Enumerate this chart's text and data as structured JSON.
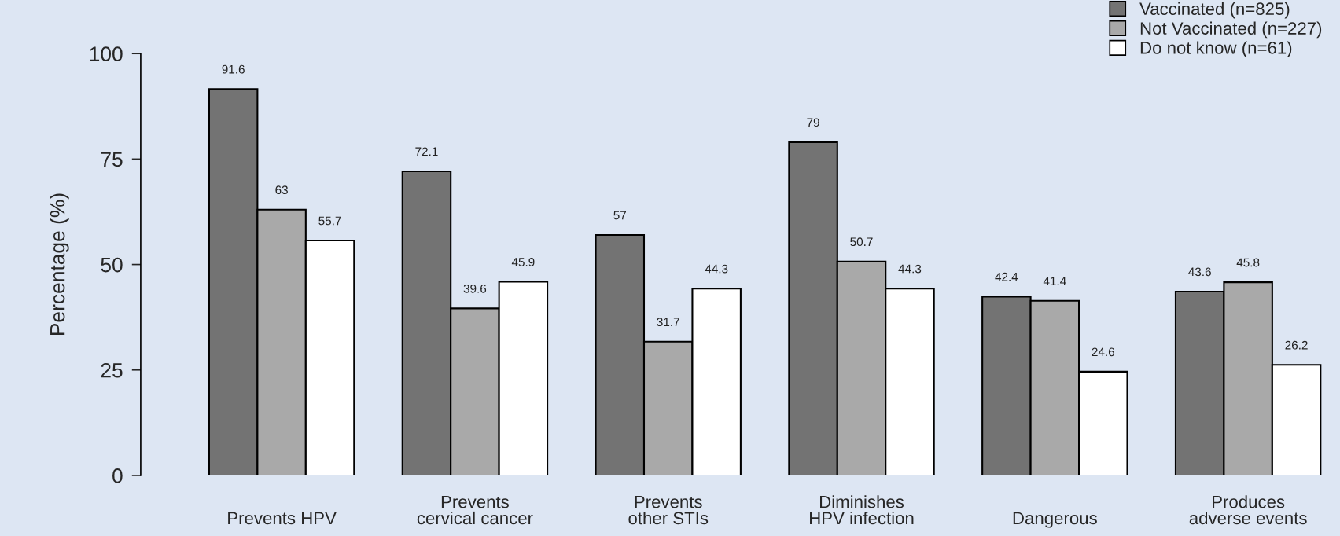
{
  "chart_data": {
    "type": "bar",
    "ylabel": "Percentage (%)",
    "categories": [
      "Prevents HPV",
      "Prevents\ncervical cancer",
      "Prevents\nother STIs",
      "Diminishes\nHPV infection",
      "Dangerous",
      "Produces\nadverse events"
    ],
    "series": [
      {
        "name": "Vaccinated (n=825)",
        "color": "#737373",
        "values": [
          91.6,
          72.1,
          57,
          79,
          42.4,
          43.6
        ]
      },
      {
        "name": "Not Vaccinated (n=227)",
        "color": "#a9a9a9",
        "values": [
          63,
          39.6,
          31.7,
          50.7,
          41.4,
          45.8
        ]
      },
      {
        "name": "Do not know (n=61)",
        "color": "#ffffff",
        "values": [
          55.7,
          45.9,
          44.3,
          44.3,
          24.6,
          26.2
        ]
      }
    ],
    "ylim": [
      0,
      100
    ],
    "yticks": [
      0,
      25,
      50,
      75,
      100
    ],
    "grid": false,
    "legend": "top right",
    "data_labels": true
  }
}
